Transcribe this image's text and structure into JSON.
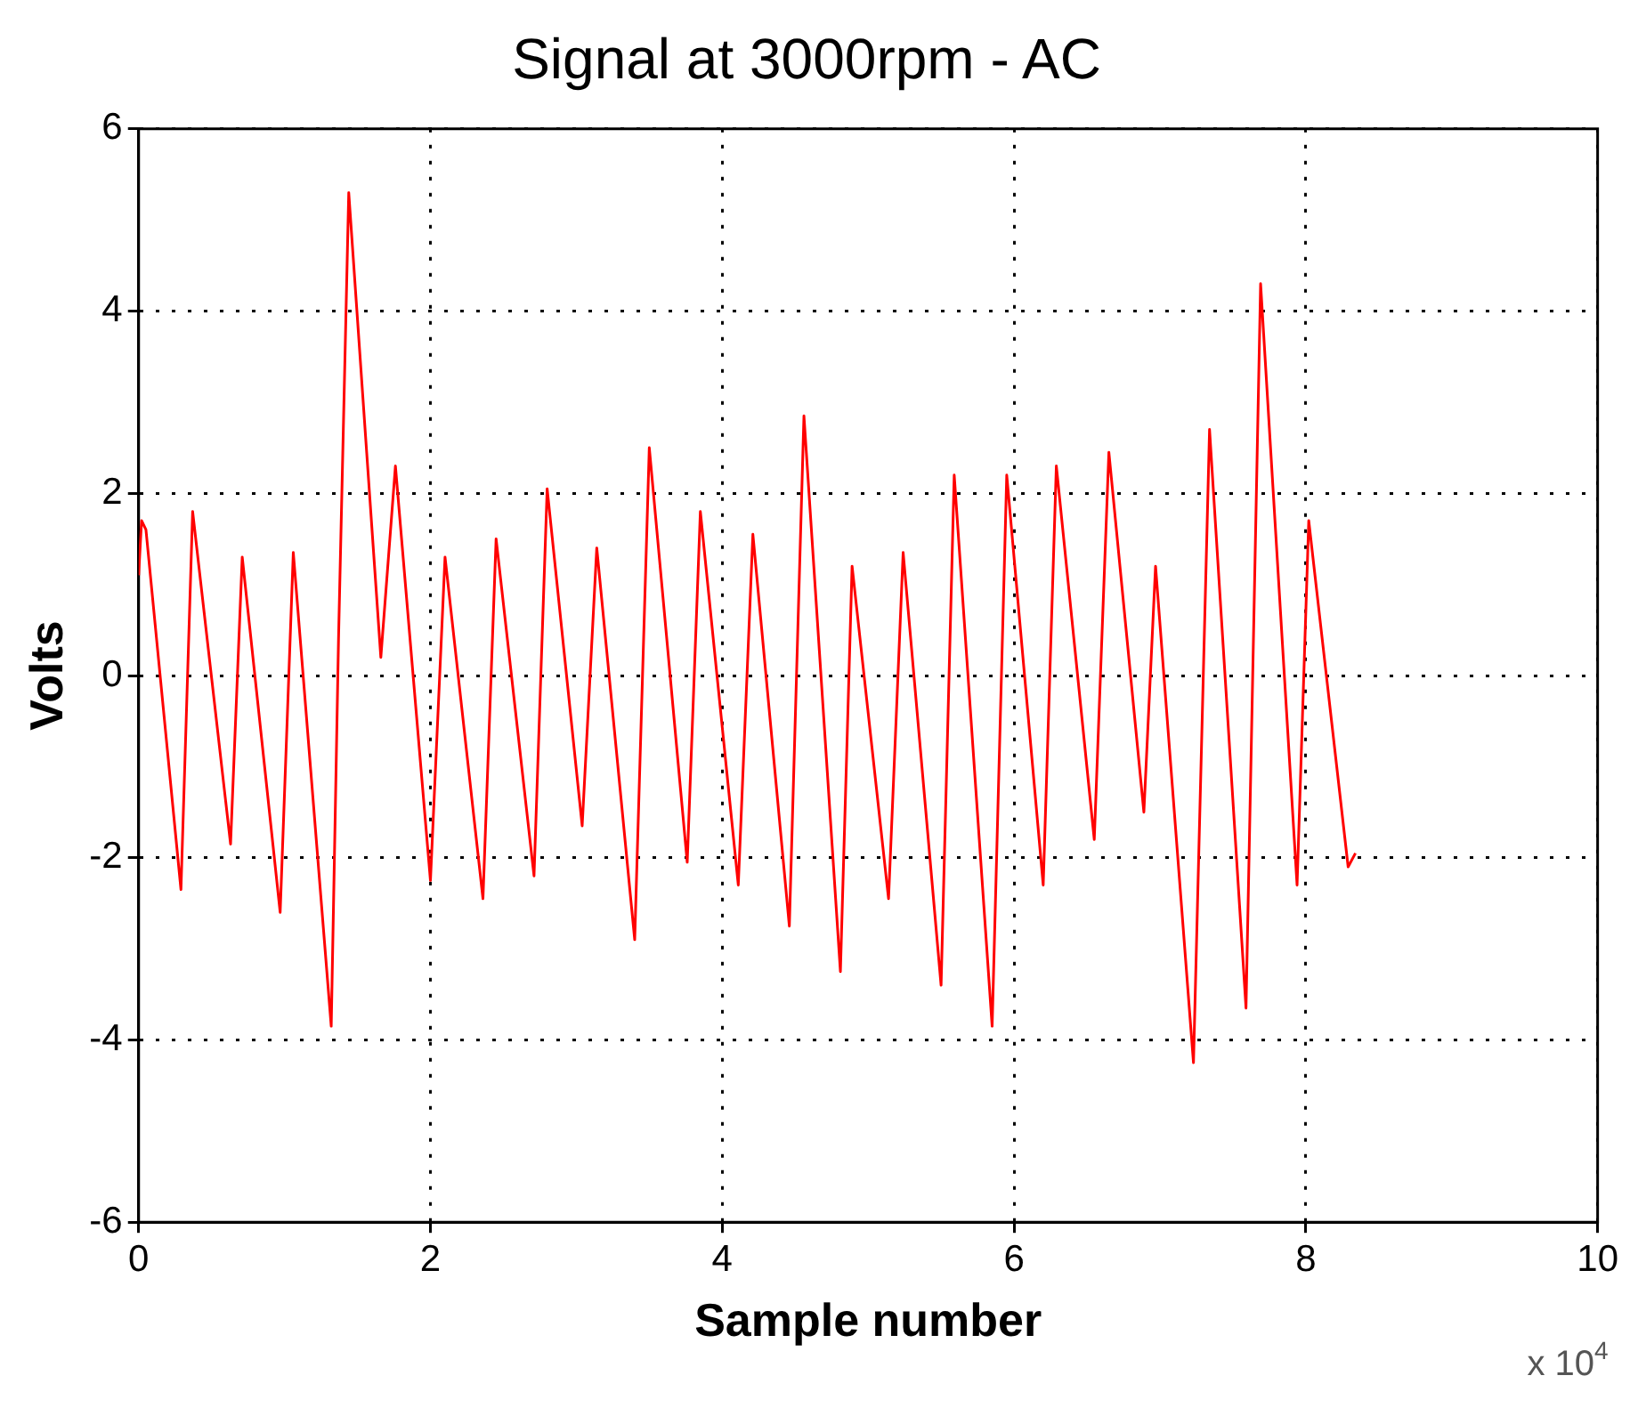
{
  "chart_data": {
    "type": "line",
    "title": "Signal at 3000rpm - AC",
    "xlabel": "Sample number",
    "ylabel": "Volts",
    "annotations": [
      "x 10$^{4}$"
    ],
    "series": [
      {
        "color": "#ff0000",
        "x": [
          0,
          0.02,
          0.05,
          0.29,
          0.37,
          0.63,
          0.71,
          0.97,
          1.06,
          1.32,
          1.37,
          1.44,
          1.66,
          1.76,
          2.0,
          2.1,
          2.36,
          2.45,
          2.71,
          2.8,
          3.04,
          3.14,
          3.4,
          3.5,
          3.76,
          3.85,
          4.11,
          4.21,
          4.46,
          4.56,
          4.81,
          4.89,
          5.14,
          5.24,
          5.5,
          5.59,
          5.85,
          5.95,
          6.2,
          6.29,
          6.55,
          6.65,
          6.89,
          6.97,
          7.23,
          7.34,
          7.59,
          7.69,
          7.94,
          8.02,
          8.29,
          8.34
        ],
        "values": [
          1.1,
          1.7,
          1.6,
          -2.35,
          1.8,
          -1.85,
          1.3,
          -2.6,
          1.35,
          -3.85,
          0.4,
          5.3,
          0.2,
          2.3,
          -2.25,
          1.3,
          -2.45,
          1.5,
          -2.2,
          2.05,
          -1.65,
          1.4,
          -2.9,
          2.5,
          -2.05,
          1.8,
          -2.3,
          1.55,
          -2.75,
          2.85,
          -3.25,
          1.2,
          -2.45,
          1.35,
          -3.4,
          2.2,
          -3.85,
          2.2,
          -2.3,
          2.3,
          -1.8,
          2.45,
          -1.5,
          1.2,
          -4.25,
          2.7,
          -3.65,
          4.3,
          -2.3,
          1.7,
          -2.1,
          -1.95
        ]
      }
    ],
    "xlim": [
      0,
      10
    ],
    "xticks": [
      0,
      2,
      4,
      6,
      8,
      10
    ],
    "ylim": [
      -6,
      6
    ],
    "yticks": [
      -6,
      -4,
      -2,
      0,
      2,
      4,
      6
    ],
    "grid": true,
    "legend": false,
    "marker": "none",
    "line_style": "solid"
  }
}
